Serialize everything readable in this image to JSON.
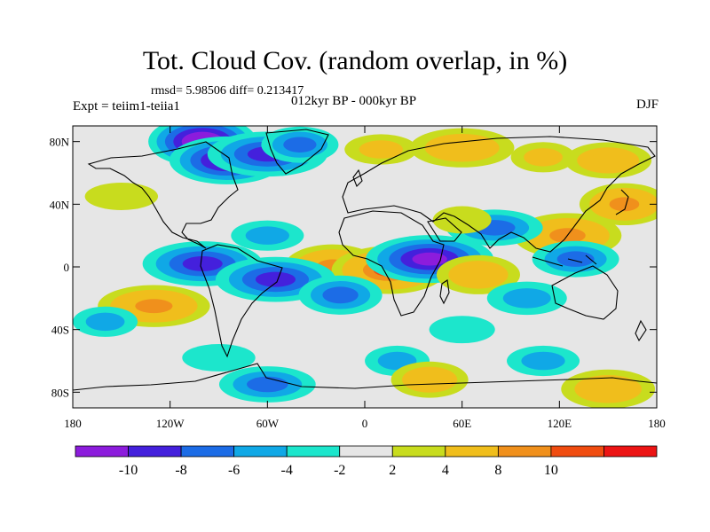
{
  "title": "Tot. Cloud Cov. (random overlap, in %)",
  "stats_line": "rmsd= 5.98506 diff= 0.213417",
  "period_line": "012kyr BP - 000kyr BP",
  "experiment_line": "Expt = teiim1-teiia1",
  "season": "DJF",
  "map": {
    "projection": "cylindrical equidistant",
    "lon_range": [
      -180,
      180
    ],
    "lat_range": [
      -90,
      90
    ],
    "lon_ticks": [
      {
        "value": -180,
        "label": "180"
      },
      {
        "value": -120,
        "label": "120W"
      },
      {
        "value": -60,
        "label": "60W"
      },
      {
        "value": 0,
        "label": "0"
      },
      {
        "value": 60,
        "label": "60E"
      },
      {
        "value": 120,
        "label": "120E"
      },
      {
        "value": 180,
        "label": "180"
      }
    ],
    "lat_ticks": [
      {
        "value": 80,
        "label": "80N"
      },
      {
        "value": 40,
        "label": "40N"
      },
      {
        "value": 0,
        "label": "0"
      },
      {
        "value": -40,
        "label": "40S"
      },
      {
        "value": -80,
        "label": "80S"
      }
    ]
  },
  "colorbar": {
    "colors": [
      "#8c1cdc",
      "#4420dc",
      "#1c6ce6",
      "#10a8e6",
      "#1ce6cc",
      "#e6e6e6",
      "#c8dc1e",
      "#f0be1c",
      "#f0901c",
      "#f04c10",
      "#ec1414"
    ],
    "labels": [
      "-10",
      "-8",
      "-6",
      "-4",
      "-2",
      "2",
      "4",
      "8",
      "10"
    ]
  },
  "chart_data": {
    "type": "heatmap",
    "title": "Tot. Cloud Cov. (random overlap, in %)",
    "xlabel": "",
    "ylabel": "",
    "x_range": [
      -180,
      180
    ],
    "y_range": [
      -90,
      90
    ],
    "levels": [
      -10,
      -8,
      -6,
      -4,
      -2,
      2,
      4,
      8,
      10
    ],
    "features": [
      {
        "lon": -100,
        "lat": 80,
        "value": -11
      },
      {
        "lon": -85,
        "lat": 68,
        "value": -10
      },
      {
        "lon": -60,
        "lat": 72,
        "value": -9
      },
      {
        "lon": -40,
        "lat": 78,
        "value": -6
      },
      {
        "lon": 10,
        "lat": 75,
        "value": 4
      },
      {
        "lon": 60,
        "lat": 76,
        "value": 7
      },
      {
        "lon": 110,
        "lat": 70,
        "value": 4
      },
      {
        "lon": 150,
        "lat": 68,
        "value": 6
      },
      {
        "lon": -150,
        "lat": 45,
        "value": 3
      },
      {
        "lon": 160,
        "lat": 40,
        "value": 8
      },
      {
        "lon": 125,
        "lat": 20,
        "value": 9
      },
      {
        "lon": 80,
        "lat": 25,
        "value": -6
      },
      {
        "lon": 60,
        "lat": 30,
        "value": 3
      },
      {
        "lon": -60,
        "lat": 20,
        "value": -4
      },
      {
        "lon": -100,
        "lat": 2,
        "value": -9
      },
      {
        "lon": -20,
        "lat": 0,
        "value": 9
      },
      {
        "lon": 15,
        "lat": -2,
        "value": 10
      },
      {
        "lon": 40,
        "lat": 5,
        "value": -10
      },
      {
        "lon": 70,
        "lat": -5,
        "value": 7
      },
      {
        "lon": 130,
        "lat": 5,
        "value": -6
      },
      {
        "lon": -55,
        "lat": -8,
        "value": -9
      },
      {
        "lon": -15,
        "lat": -18,
        "value": -7
      },
      {
        "lon": 100,
        "lat": -20,
        "value": -5
      },
      {
        "lon": -130,
        "lat": -25,
        "value": 8
      },
      {
        "lon": -160,
        "lat": -35,
        "value": -4
      },
      {
        "lon": 60,
        "lat": -40,
        "value": -3
      },
      {
        "lon": -90,
        "lat": -58,
        "value": -3
      },
      {
        "lon": 20,
        "lat": -60,
        "value": -4
      },
      {
        "lon": 110,
        "lat": -60,
        "value": -4
      },
      {
        "lon": -60,
        "lat": -75,
        "value": -6
      },
      {
        "lon": 40,
        "lat": -72,
        "value": 6
      },
      {
        "lon": 150,
        "lat": -78,
        "value": 7
      }
    ]
  }
}
